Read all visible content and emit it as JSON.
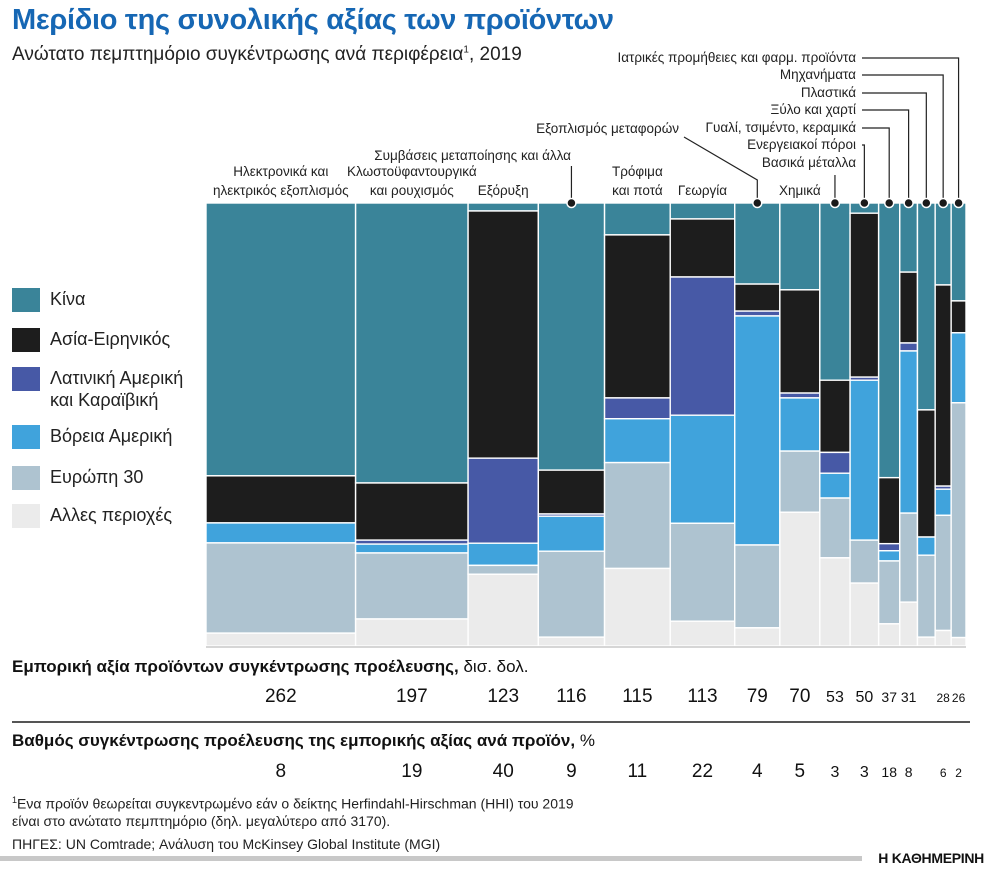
{
  "title": "Μερίδιο της συνολικής αξίας των προϊόντων",
  "subtitle": "Ανώτατο πεμπτημόριο συγκέντρωσης ανά περιφέρεια",
  "subtitle_sup": "1",
  "subtitle_year": ", 2019",
  "row1_title": "Εμπορική αξία προϊόντων συγκέντρωσης προέλευσης,",
  "row1_unit": " δισ. δολ.",
  "row2_title": "Βαθμός συγκέντρωσης προέλευσης της εμπορικής αξίας ανά προϊόν,",
  "row2_unit": " %",
  "footnote_sup": "1",
  "footnote_line1": "Ενα προϊόν θεωρείται συγκεντρωμένο εάν ο δείκτης Herfindahl-Hirschman (HHI) του 2019",
  "footnote_line2": "είναι στο ανώτατο πεμπτημόριο (δηλ. μεγαλύτερο από 3170).",
  "sources": "ΠΗΓΕΣ: UN Comtrade; Ανάλυση του McKinsey Global Institute (MGI)",
  "logo": "Η ΚΑΘΗΜΕΡΙΝΗ",
  "chart_data": {
    "type": "marimekko",
    "title": "Μερίδιο της συνολικής αξίας των προϊόντων",
    "unit_widths": "δισ. δολ.",
    "unit_heights": "%",
    "regions": [
      {
        "name": "Κίνα",
        "color": "#3a8499"
      },
      {
        "name": "Ασία-Ειρηνικός",
        "color": "#1d1d1d"
      },
      {
        "name": "Λατινική Αμερική και Καραϊβική",
        "name_line1": "Λατινική Αμερική",
        "name_line2": "και Καραϊβική",
        "color": "#4759a6"
      },
      {
        "name": "Βόρεια Αμερική",
        "color": "#40a3dc"
      },
      {
        "name": "Ευρώπη 30",
        "color": "#aec3d0"
      },
      {
        "name": "Αλλες περιοχές",
        "color": "#ebebeb"
      }
    ],
    "categories": [
      {
        "label": [
          "Ηλεκτρονικά και",
          "ηλεκτρικός εξοπλισμός"
        ],
        "trade_value": 262,
        "concentration": 8,
        "shares": [
          61.4,
          10.6,
          0,
          4.5,
          20.3,
          2.9
        ]
      },
      {
        "label": [
          "Κλωστοϋφαντουργικά",
          "και ρουχισμός"
        ],
        "trade_value": 197,
        "concentration": 19,
        "shares": [
          63.2,
          12.9,
          0.9,
          2.0,
          14.9,
          6.1
        ]
      },
      {
        "label": [
          "Εξόρυξη"
        ],
        "trade_value": 123,
        "concentration": 40,
        "shares": [
          1.8,
          55.8,
          19.2,
          5.0,
          2.0,
          16.2
        ]
      },
      {
        "label": [
          "Συμβάσεις μεταποίησης και άλλα"
        ],
        "trade_value": 116,
        "concentration": 9,
        "shares": [
          60.3,
          9.9,
          0.5,
          7.9,
          19.4,
          2.0
        ]
      },
      {
        "label": [
          "Τρόφιμα",
          "και ποτά"
        ],
        "trade_value": 115,
        "concentration": 11,
        "shares": [
          7.2,
          36.8,
          4.7,
          9.9,
          23.9,
          17.5
        ]
      },
      {
        "label": [
          "Γεωργία"
        ],
        "trade_value": 113,
        "concentration": 22,
        "shares": [
          3.6,
          13.1,
          31.2,
          24.4,
          22.1,
          5.6
        ]
      },
      {
        "label": [
          "Εξοπλισμός μεταφορών"
        ],
        "trade_value": 79,
        "concentration": 4,
        "shares": [
          18.3,
          6.1,
          1.1,
          51.7,
          18.7,
          4.1
        ]
      },
      {
        "label": [
          "Χημικά"
        ],
        "trade_value": 70,
        "concentration": 5,
        "shares": [
          19.6,
          23.3,
          1.1,
          12.0,
          13.8,
          30.2
        ]
      },
      {
        "label": [
          "Βασικά μέταλλα"
        ],
        "trade_value": 53,
        "concentration": 3,
        "shares": [
          40.0,
          16.3,
          4.7,
          5.6,
          13.5,
          19.9
        ]
      },
      {
        "label": [
          "Ενεργειακοί πόροι"
        ],
        "trade_value": 50,
        "concentration": 3,
        "shares": [
          2.3,
          37.0,
          0.7,
          36.1,
          9.7,
          14.2
        ]
      },
      {
        "label": [
          "Γυαλί, τσιμέντο, κεραμικά"
        ],
        "trade_value": 37,
        "concentration": 18,
        "shares": [
          62.0,
          14.9,
          1.6,
          2.3,
          14.2,
          5.0
        ]
      },
      {
        "label": [
          "Ξύλο και χαρτί"
        ],
        "trade_value": 31,
        "concentration": 8,
        "shares": [
          15.6,
          16.0,
          1.8,
          36.6,
          20.1,
          9.9
        ]
      },
      {
        "label": [
          "Πλαστικά"
        ],
        "trade_value": null,
        "concentration": null,
        "shares": [
          46.7,
          28.7,
          0,
          4.1,
          18.5,
          2.0
        ]
      },
      {
        "label": [
          "Μηχανήματα"
        ],
        "trade_value": 28,
        "concentration": 6,
        "shares": [
          18.5,
          45.4,
          0.7,
          5.9,
          26.0,
          3.5
        ]
      },
      {
        "label": [
          "Ιατρικές προμήθειες και φαρμ. προϊόντα"
        ],
        "trade_value": 26,
        "concentration": 2,
        "shares": [
          22.1,
          7.2,
          0,
          15.8,
          53.0,
          1.9
        ]
      }
    ],
    "ylim": [
      0,
      100
    ]
  }
}
